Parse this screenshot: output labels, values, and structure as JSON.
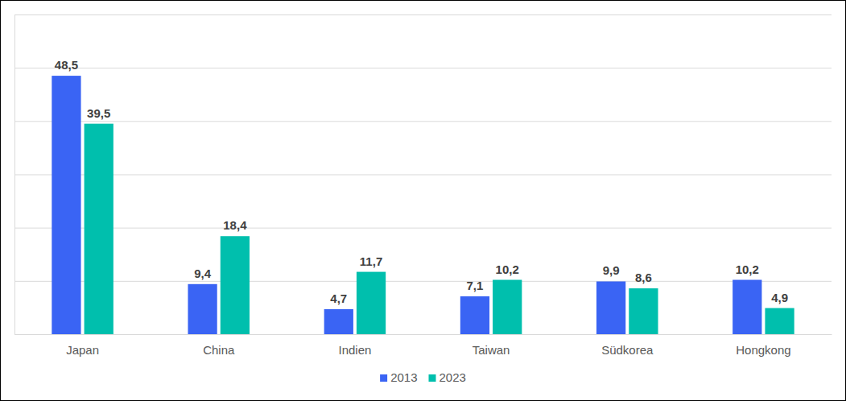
{
  "chart_data": {
    "type": "bar",
    "categories": [
      "Japan",
      "China",
      "Indien",
      "Taiwan",
      "Südkorea",
      "Hongkong"
    ],
    "series": [
      {
        "name": "2013",
        "color": "#3a64f4",
        "values": [
          48.5,
          9.4,
          4.7,
          7.1,
          9.9,
          10.2
        ],
        "value_labels": [
          "48,5",
          "9,4",
          "4,7",
          "7,1",
          "9,9",
          "10,2"
        ]
      },
      {
        "name": "2023",
        "color": "#00bfad",
        "values": [
          39.5,
          18.4,
          11.7,
          10.2,
          8.6,
          4.9
        ],
        "value_labels": [
          "39,5",
          "18,4",
          "11,7",
          "10,2",
          "8,6",
          "4,9"
        ]
      }
    ],
    "ylim": [
      0,
      60
    ],
    "yticks": [
      0,
      10,
      20,
      30,
      40,
      50,
      60
    ],
    "grid": true,
    "legend": "bottom",
    "data_labels": true,
    "tick_labels": "x"
  }
}
